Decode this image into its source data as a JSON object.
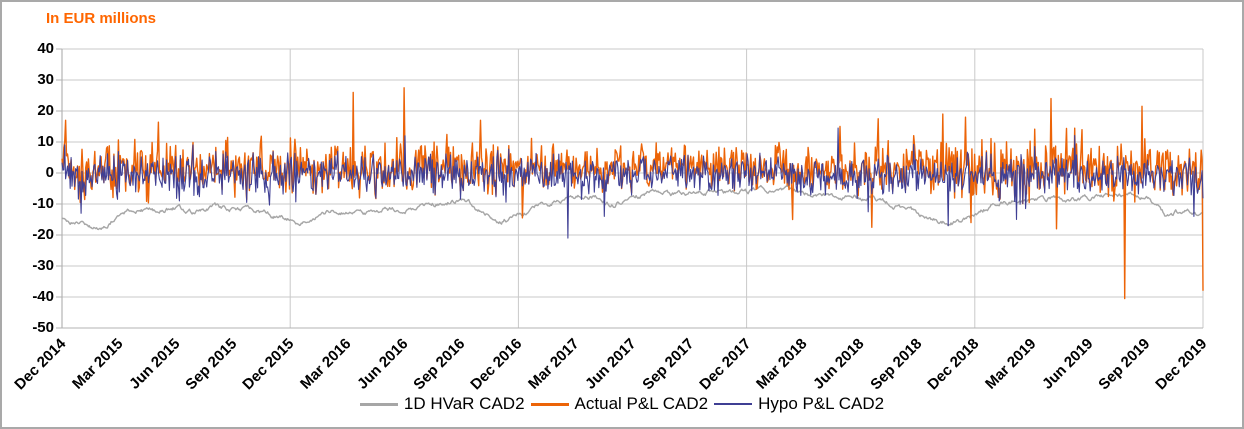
{
  "title": {
    "text": "In EUR millions",
    "color": "#ff6600"
  },
  "legend": [
    {
      "label": "1D HVaR CAD2",
      "color": "#a6a6a6",
      "thickness": 3
    },
    {
      "label": "Actual P&L CAD2",
      "color": "#ec6408",
      "thickness": 3
    },
    {
      "label": "Hypo P&L CAD2",
      "color": "#3f3f94",
      "thickness": 2
    }
  ],
  "colors": {
    "gridline": "#c9c9c9",
    "axis": "#b3b3b3",
    "background": "#ffffff",
    "frame_border": "#a9a9a9",
    "axis_text": "#000000"
  },
  "chart_data": {
    "type": "line",
    "title": "In EUR millions",
    "xlabel": "",
    "ylabel": "In EUR millions",
    "ylim": [
      -50,
      40
    ],
    "y_ticks": [
      40,
      30,
      20,
      10,
      0,
      -10,
      -20,
      -30,
      -40,
      -50
    ],
    "x_tick_labels": [
      "Dec 2014",
      "Mar 2015",
      "Jun 2015",
      "Sep 2015",
      "Dec 2015",
      "Mar 2016",
      "Jun 2016",
      "Sep 2016",
      "Dec 2016",
      "Mar 2017",
      "Jun 2017",
      "Sep 2017",
      "Dec 2017",
      "Mar 2018",
      "Jun 2018",
      "Sep 2018",
      "Dec 2018",
      "Mar 2019",
      "Jun 2019",
      "Sep 2019",
      "Dec 2019"
    ],
    "months_per_tick": 3,
    "x_range_months": 60,
    "v_gridline_tick_indices": [
      0,
      4,
      8,
      12,
      16,
      20
    ],
    "grid": "horizontal every 10, vertical yearly",
    "legend_position": "bottom-center",
    "points": 1255,
    "seed": 20191231,
    "series": [
      {
        "name": "1D HVaR CAD2",
        "color": "#a6a6a6",
        "kind": "smooth",
        "width": 1.4,
        "jitter": 1.1,
        "profile_month_value": [
          [
            0,
            -14.5
          ],
          [
            1,
            -16.5
          ],
          [
            2,
            -18
          ],
          [
            3,
            -13.5
          ],
          [
            4,
            -11.5
          ],
          [
            5,
            -12.5
          ],
          [
            6,
            -11
          ],
          [
            7,
            -12.5
          ],
          [
            8,
            -11
          ],
          [
            9,
            -11.5
          ],
          [
            10,
            -12.5
          ],
          [
            11,
            -13.5
          ],
          [
            12,
            -15.5
          ],
          [
            13,
            -16.5
          ],
          [
            14,
            -12.5
          ],
          [
            15,
            -13
          ],
          [
            16,
            -13.5
          ],
          [
            17,
            -11.5
          ],
          [
            18,
            -12
          ],
          [
            19,
            -10.5
          ],
          [
            20,
            -9.5
          ],
          [
            21,
            -8.6
          ],
          [
            22,
            -12
          ],
          [
            23,
            -16
          ],
          [
            24,
            -13.5
          ],
          [
            25,
            -11
          ],
          [
            26,
            -9
          ],
          [
            27,
            -8
          ],
          [
            28,
            -7.5
          ],
          [
            29,
            -10
          ],
          [
            30,
            -7.5
          ],
          [
            31,
            -6.5
          ],
          [
            32,
            -7
          ],
          [
            33,
            -6.5
          ],
          [
            34,
            -6
          ],
          [
            35,
            -6.5
          ],
          [
            36,
            -6
          ],
          [
            37,
            -5.5
          ],
          [
            38,
            -6
          ],
          [
            39,
            -6.5
          ],
          [
            40,
            -7
          ],
          [
            41,
            -8
          ],
          [
            42,
            -7.5
          ],
          [
            43,
            -9
          ],
          [
            44,
            -11
          ],
          [
            45,
            -13
          ],
          [
            46,
            -15.5
          ],
          [
            47,
            -16
          ],
          [
            48,
            -14
          ],
          [
            49,
            -10
          ],
          [
            50,
            -9
          ],
          [
            51,
            -9.5
          ],
          [
            52,
            -8.5
          ],
          [
            53,
            -9
          ],
          [
            54,
            -8.5
          ],
          [
            55,
            -7
          ],
          [
            56,
            -6.5
          ],
          [
            57,
            -7.5
          ],
          [
            58,
            -13
          ],
          [
            59,
            -12.5
          ],
          [
            60,
            -13.5
          ]
        ]
      },
      {
        "name": "Actual P&L CAD2",
        "color": "#ec6408",
        "kind": "noisy",
        "width": 1.4,
        "mean": 1.4,
        "amp_profile_month_value": [
          [
            0,
            4.6
          ],
          [
            6,
            4.2
          ],
          [
            12,
            4.1
          ],
          [
            15,
            4.3
          ],
          [
            18,
            4.3
          ],
          [
            24,
            3.9
          ],
          [
            30,
            3.5
          ],
          [
            36,
            3.6
          ],
          [
            40,
            3.8
          ],
          [
            44,
            4.3
          ],
          [
            48,
            4.6
          ],
          [
            52,
            4.8
          ],
          [
            56,
            4.9
          ],
          [
            60,
            4.8
          ]
        ],
        "tail_chance": 0.035,
        "clamp": [
          -16,
          22
        ],
        "spikes_month_value": [
          [
            0.2,
            17
          ],
          [
            15.3,
            26
          ],
          [
            18.0,
            27.5
          ],
          [
            22.0,
            17
          ],
          [
            24.2,
            -14.5
          ],
          [
            38.4,
            -15
          ],
          [
            40.9,
            15
          ],
          [
            42.6,
            -17.5
          ],
          [
            42.9,
            17.5
          ],
          [
            46.3,
            19
          ],
          [
            47.5,
            18
          ],
          [
            47.8,
            -16
          ],
          [
            52.0,
            24
          ],
          [
            52.3,
            -18
          ],
          [
            55.9,
            -40.5
          ],
          [
            56.8,
            21.5
          ],
          [
            60,
            -38
          ]
        ]
      },
      {
        "name": "Hypo P&L CAD2",
        "color": "#3f3f94",
        "kind": "noisy-correlated",
        "width": 1.1,
        "mean": -0.5,
        "amp": 2.6,
        "corr": 0.45,
        "tail_chance": 0.02,
        "clamp": [
          -21.5,
          15
        ],
        "spikes_month_value": [
          [
            1.0,
            -13
          ],
          [
            18.05,
            12
          ],
          [
            26.6,
            -21
          ],
          [
            28.5,
            -14
          ],
          [
            40.8,
            14.5
          ],
          [
            46.6,
            -17
          ],
          [
            50.2,
            -15
          ],
          [
            59.5,
            -14
          ]
        ]
      }
    ]
  }
}
